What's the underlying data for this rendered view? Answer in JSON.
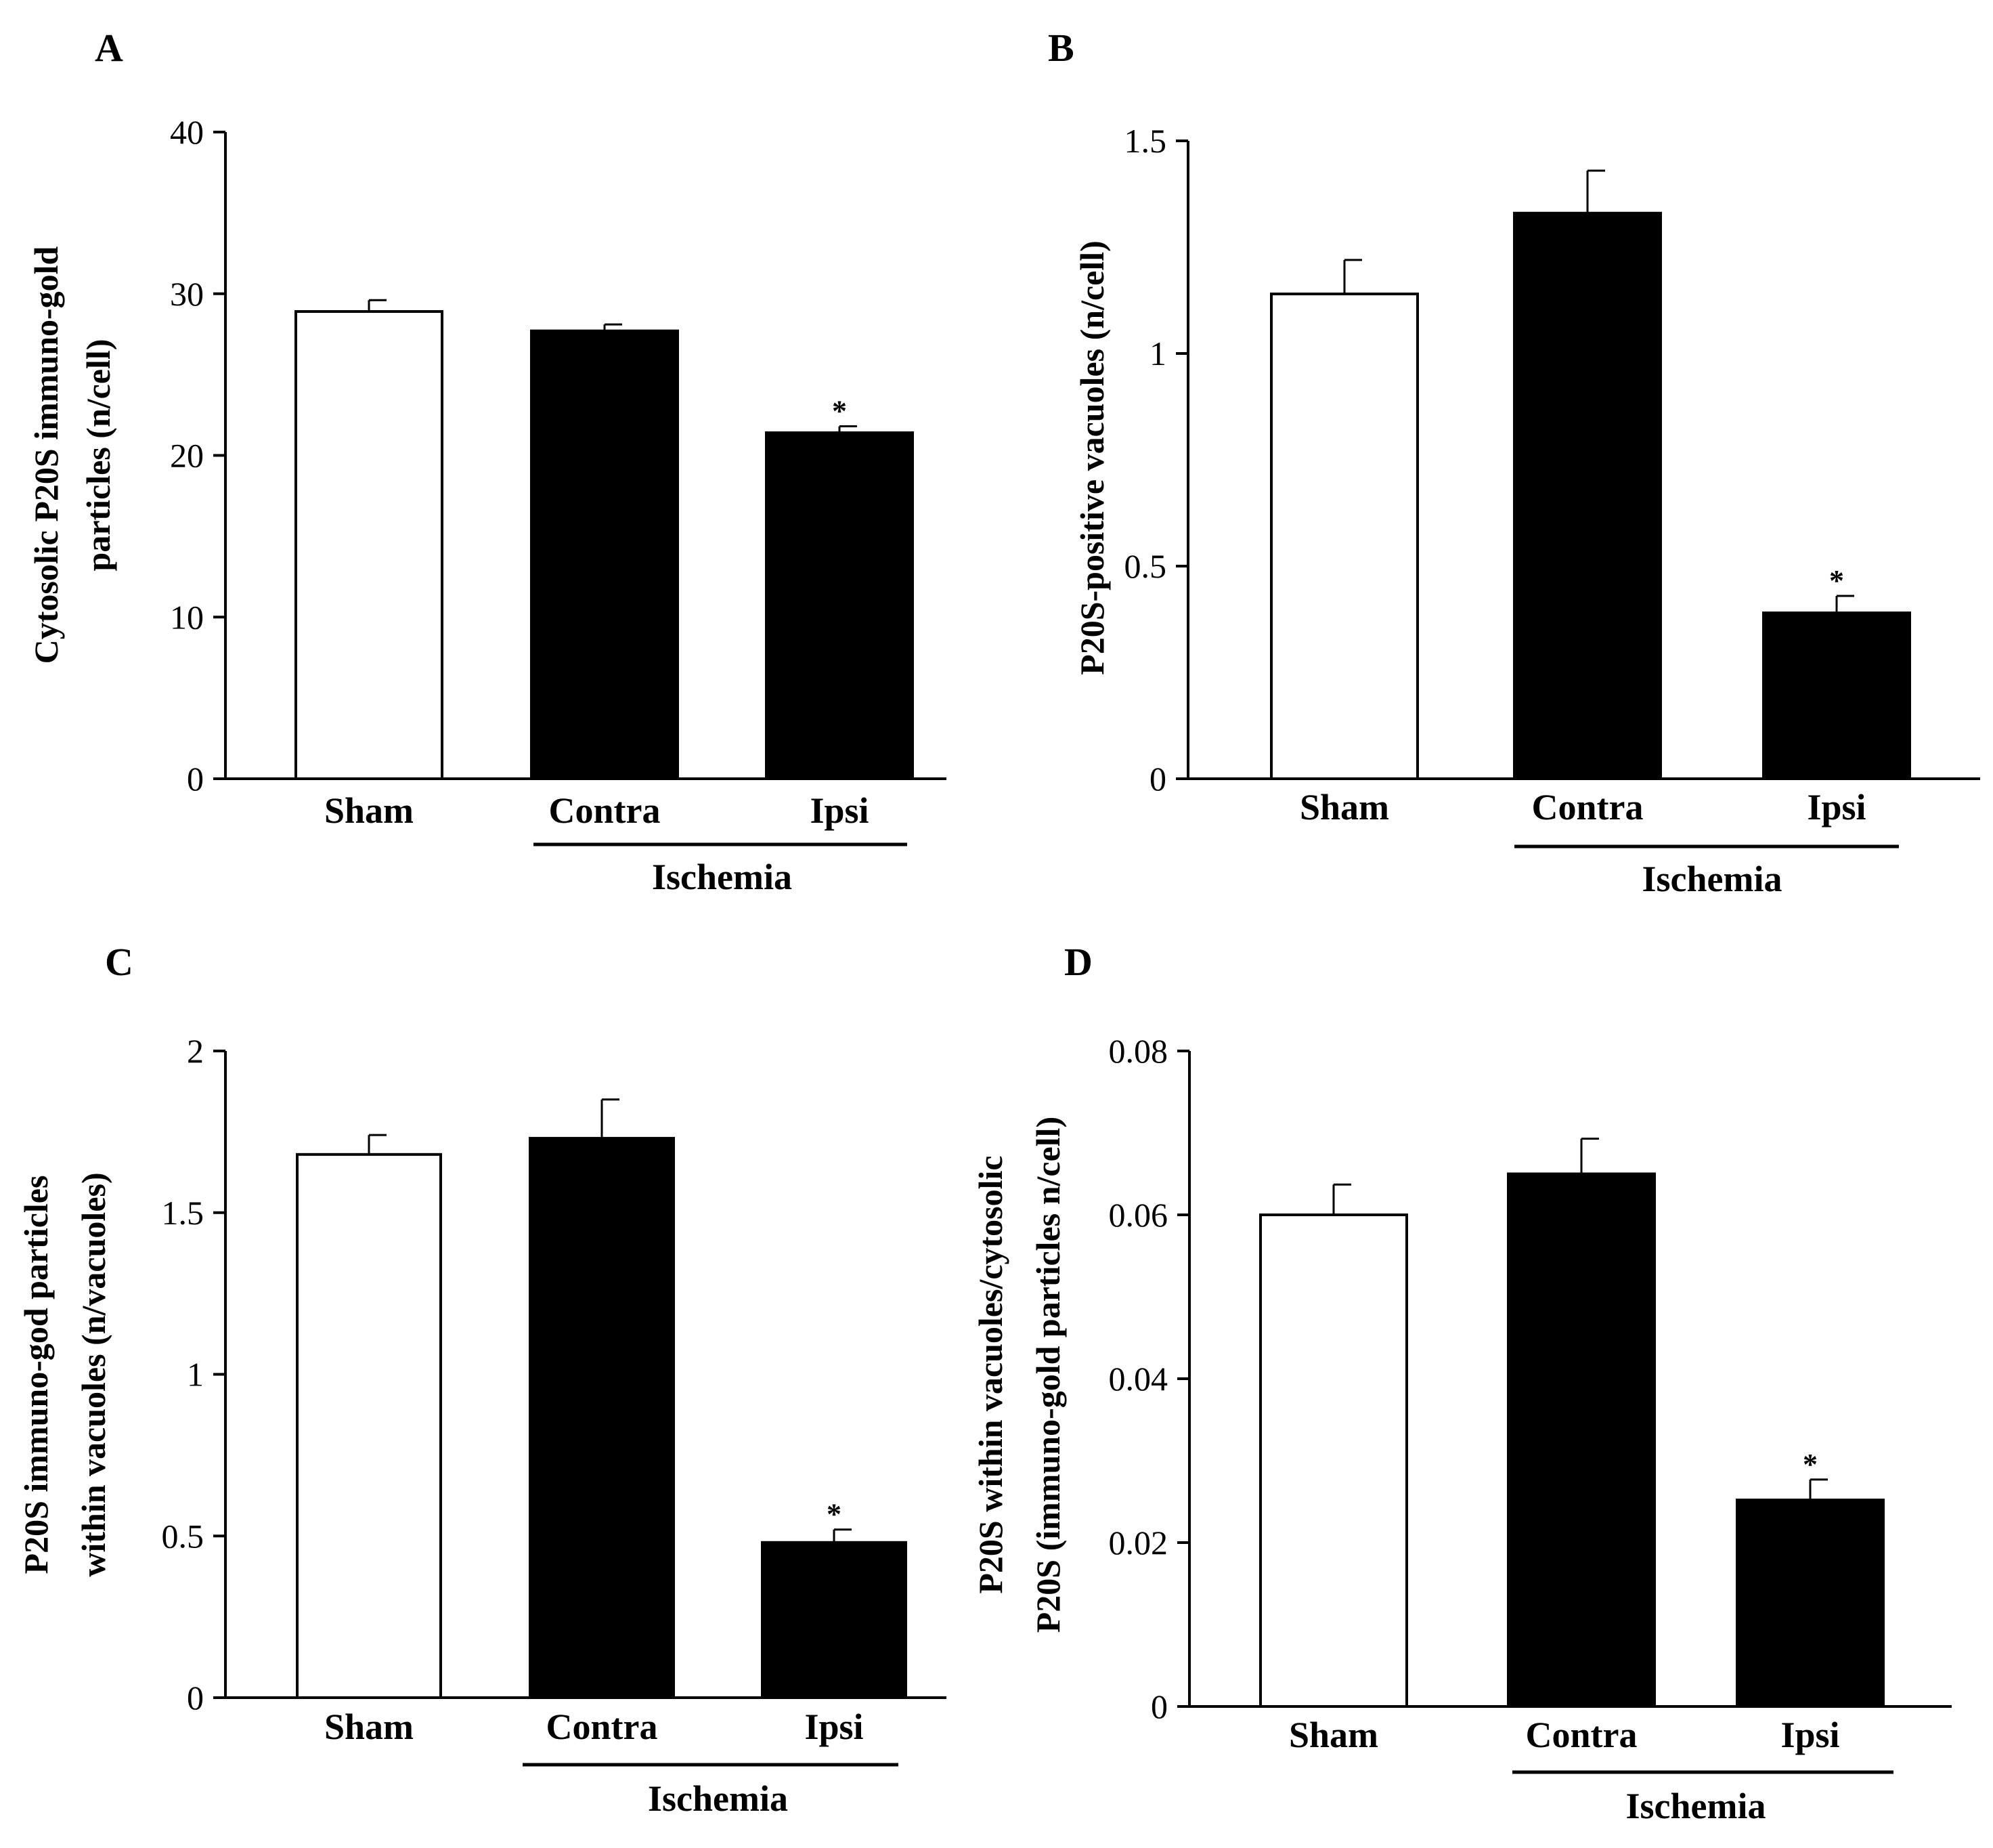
{
  "chart_data": [
    {
      "panel": "A",
      "type": "bar",
      "categories": [
        "Sham",
        "Contra",
        "Ipsi"
      ],
      "values": [
        28.9,
        27.7,
        21.4
      ],
      "errors": [
        0.7,
        0.4,
        0.4
      ],
      "significance": [
        "",
        "",
        "*"
      ],
      "bar_colors": [
        "#ffffff",
        "#000000",
        "#000000"
      ],
      "ylabel": [
        "Cytosolic P20S immuno-gold",
        "particles (n/cell)"
      ],
      "ylim": [
        0,
        40
      ],
      "yticks": [
        0,
        10,
        20,
        30,
        40
      ],
      "ytick_labels": [
        "0",
        "10",
        "20",
        "30",
        "40"
      ],
      "group_label": "Ischemia",
      "group_span": [
        1,
        2
      ]
    },
    {
      "panel": "B",
      "type": "bar",
      "categories": [
        "Sham",
        "Contra",
        "Ipsi"
      ],
      "values": [
        1.14,
        1.33,
        0.39
      ],
      "errors": [
        0.08,
        0.1,
        0.04
      ],
      "significance": [
        "",
        "",
        "*"
      ],
      "bar_colors": [
        "#ffffff",
        "#000000",
        "#000000"
      ],
      "ylabel": [
        "P20S-positive vacuoles  (n/cell)"
      ],
      "ylim": [
        0,
        1.5
      ],
      "yticks": [
        0,
        0.5,
        1,
        1.5
      ],
      "ytick_labels": [
        "0",
        "0.5",
        "1",
        "1.5"
      ],
      "group_label": "Ischemia",
      "group_span": [
        1,
        2
      ]
    },
    {
      "panel": "C",
      "type": "bar",
      "categories": [
        "Sham",
        "Contra",
        "Ipsi"
      ],
      "values": [
        1.68,
        1.73,
        0.48
      ],
      "errors": [
        0.06,
        0.12,
        0.04
      ],
      "significance": [
        "",
        "",
        "*"
      ],
      "bar_colors": [
        "#ffffff",
        "#000000",
        "#000000"
      ],
      "ylabel": [
        "P20S immuno-god particles",
        "within vacuoles (n/vacuoles)"
      ],
      "ylim": [
        0,
        2
      ],
      "yticks": [
        0,
        0.5,
        1,
        1.5,
        2
      ],
      "ytick_labels": [
        "0",
        "0.5",
        "1",
        "1.5",
        "2"
      ],
      "group_label": "Ischemia",
      "group_span": [
        1,
        2
      ]
    },
    {
      "panel": "D",
      "type": "bar",
      "categories": [
        "Sham",
        "Contra",
        "Ipsi"
      ],
      "values": [
        0.06,
        0.065,
        0.0252
      ],
      "errors": [
        0.0037,
        0.0043,
        0.0025
      ],
      "significance": [
        "",
        "",
        "*"
      ],
      "bar_colors": [
        "#ffffff",
        "#000000",
        "#000000"
      ],
      "ylabel": [
        "P20S within vacuoles/cytosolic",
        "P20S (immuno-gold particles n/cell)"
      ],
      "ylim": [
        0,
        0.08
      ],
      "yticks": [
        0,
        0.02,
        0.04,
        0.06,
        0.08
      ],
      "ytick_labels": [
        "0",
        "0.02",
        "0.04",
        "0.06",
        "0.08"
      ],
      "group_label": "Ischemia",
      "group_span": [
        1,
        2
      ]
    }
  ]
}
